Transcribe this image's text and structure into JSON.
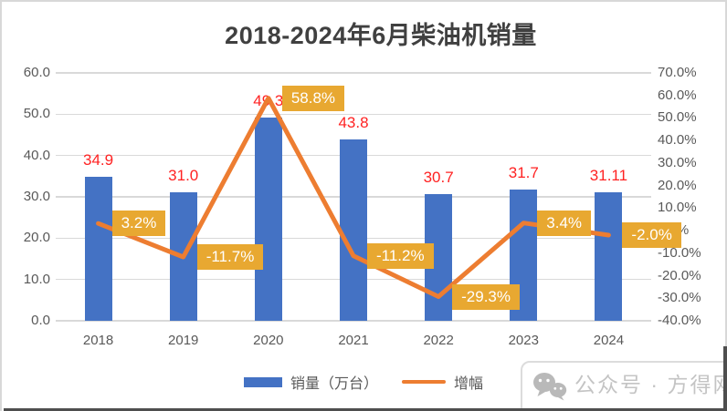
{
  "title": "2018-2024年6月柴油机销量",
  "chart_data": {
    "type": "combo-bar-line",
    "title": "2018-2024年6月柴油机销量",
    "categories": [
      "2018",
      "2019",
      "2020",
      "2021",
      "2022",
      "2023",
      "2024"
    ],
    "series": [
      {
        "name": "销量（万台）",
        "type": "bar",
        "axis": "left",
        "values": [
          34.9,
          31.0,
          49.3,
          43.8,
          30.7,
          31.7,
          31.11
        ],
        "data_labels": [
          "34.9",
          "31.0",
          "49.3",
          "43.8",
          "30.7",
          "31.7",
          "31.11"
        ]
      },
      {
        "name": "增幅",
        "type": "line",
        "axis": "right",
        "values": [
          3.2,
          -11.7,
          58.8,
          -11.2,
          -29.3,
          3.4,
          -2.0
        ],
        "data_labels": [
          "3.2%",
          "-11.7%",
          "58.8%",
          "-11.2%",
          "-29.3%",
          "3.4%",
          "-2.0%"
        ]
      }
    ],
    "left_axis": {
      "min": 0,
      "max": 60,
      "ticks": [
        "60.0",
        "50.0",
        "40.0",
        "30.0",
        "20.0",
        "10.0",
        "0.0"
      ]
    },
    "right_axis": {
      "min": -40,
      "max": 70,
      "ticks": [
        "70.0%",
        "60.0%",
        "50.0%",
        "40.0%",
        "30.0%",
        "20.0%",
        "10.0%",
        "0.0%",
        "-10.0%",
        "-20.0%",
        "-30.0%",
        "-40.0%"
      ]
    },
    "grid": true,
    "legend_position": "bottom",
    "colors": {
      "bar": "#4472C4",
      "line": "#ED7D31",
      "bar_label": "#FF2222",
      "line_label_bg": "#E8A831",
      "line_label_text": "#FFFFFF",
      "gridline": "#D9D9D9",
      "axis_text": "#595959",
      "title_text": "#404040"
    }
  },
  "legend": {
    "items": [
      {
        "label": "销量（万台）",
        "swatch": "bar"
      },
      {
        "label": "增幅",
        "swatch": "line"
      }
    ]
  },
  "watermark": {
    "icon": "wechat-icon",
    "label": "公众号 · 方得网"
  }
}
